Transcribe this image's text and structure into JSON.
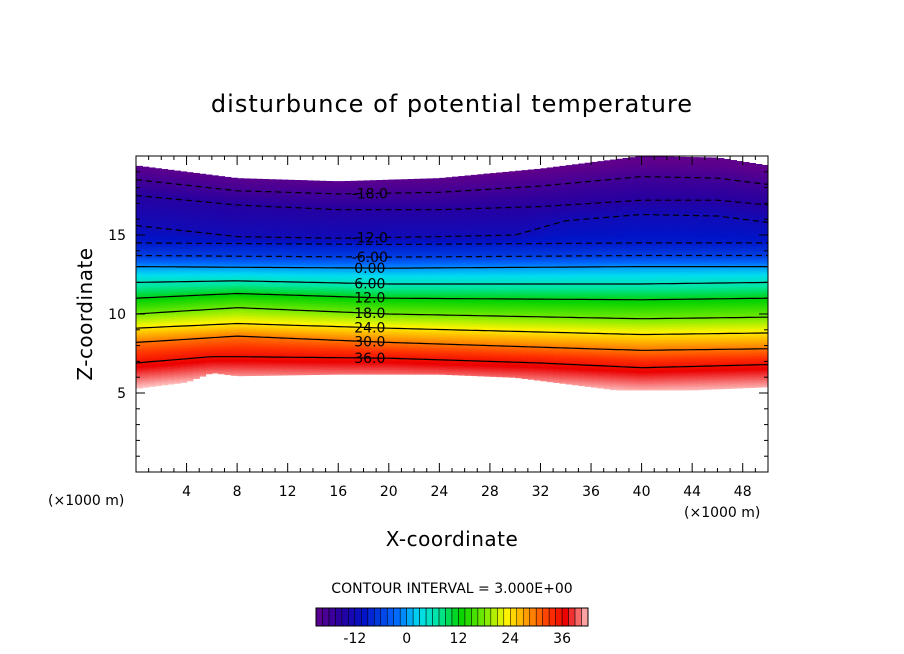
{
  "chart_data": {
    "type": "heatmap",
    "title": "disturbunce of potential temperature",
    "xlabel": "X-coordinate",
    "ylabel": "Z-coordinate",
    "x_unit_label": "(×1000 m)",
    "z_unit_label": "(×1000 m)",
    "xlim": [
      0,
      50
    ],
    "ylim": [
      0,
      20
    ],
    "x_ticks": [
      4,
      8,
      12,
      16,
      20,
      24,
      28,
      32,
      36,
      40,
      44,
      48
    ],
    "y_ticks": [
      5,
      10,
      15
    ],
    "contour_interval_text": "CONTOUR INTERVAL = 3.000E+00",
    "contour_labels": [
      "-18.0",
      "-12.0",
      "-6.00",
      "0.00",
      "6.00",
      "12.0",
      "18.0",
      "24.0",
      "30.0",
      "36.0"
    ],
    "colorbar": {
      "min": -21,
      "max": 42,
      "ticks": [
        -12,
        0,
        12,
        24,
        36
      ]
    },
    "surfaces": {
      "top": [
        [
          0,
          19.4
        ],
        [
          8,
          18.6
        ],
        [
          16,
          18.4
        ],
        [
          24,
          18.6
        ],
        [
          32,
          19.2
        ],
        [
          40,
          20.0
        ],
        [
          46,
          19.9
        ],
        [
          50,
          19.4
        ]
      ],
      "bottom": [
        [
          0,
          5.3
        ],
        [
          4,
          5.7
        ],
        [
          6,
          6.3
        ],
        [
          8,
          6.1
        ],
        [
          16,
          6.2
        ],
        [
          24,
          6.2
        ],
        [
          30,
          6.0
        ],
        [
          34,
          5.6
        ],
        [
          38,
          5.2
        ],
        [
          44,
          5.2
        ],
        [
          50,
          5.4
        ]
      ]
    },
    "contours": [
      {
        "value": -18,
        "profile": [
          [
            0,
            18.5
          ],
          [
            8,
            17.8
          ],
          [
            16,
            17.6
          ],
          [
            24,
            17.7
          ],
          [
            32,
            18.1
          ],
          [
            40,
            18.7
          ],
          [
            46,
            18.6
          ],
          [
            50,
            18.2
          ]
        ]
      },
      {
        "value": -15,
        "profile": [
          [
            0,
            17.5
          ],
          [
            8,
            16.9
          ],
          [
            16,
            16.6
          ],
          [
            24,
            16.6
          ],
          [
            32,
            16.8
          ],
          [
            40,
            17.2
          ],
          [
            46,
            17.2
          ],
          [
            50,
            16.9
          ]
        ]
      },
      {
        "value": -12,
        "profile": [
          [
            0,
            15.6
          ],
          [
            8,
            14.9
          ],
          [
            16,
            14.8
          ],
          [
            24,
            14.9
          ],
          [
            30,
            15.0
          ],
          [
            34,
            15.9
          ],
          [
            40,
            16.3
          ],
          [
            46,
            16.2
          ],
          [
            50,
            15.8
          ]
        ]
      },
      {
        "value": -9,
        "profile": [
          [
            0,
            14.5
          ],
          [
            20,
            14.4
          ],
          [
            40,
            14.5
          ],
          [
            50,
            14.5
          ]
        ]
      },
      {
        "value": -6,
        "profile": [
          [
            0,
            13.7
          ],
          [
            20,
            13.6
          ],
          [
            40,
            13.7
          ],
          [
            50,
            13.7
          ]
        ]
      },
      {
        "value": 0,
        "profile": [
          [
            0,
            13.0
          ],
          [
            20,
            12.9
          ],
          [
            40,
            13.0
          ],
          [
            50,
            13.0
          ]
        ]
      },
      {
        "value": 6,
        "profile": [
          [
            0,
            12.0
          ],
          [
            8,
            12.1
          ],
          [
            20,
            11.9
          ],
          [
            40,
            11.9
          ],
          [
            50,
            12.0
          ]
        ]
      },
      {
        "value": 12,
        "profile": [
          [
            0,
            11.0
          ],
          [
            8,
            11.3
          ],
          [
            20,
            11.0
          ],
          [
            40,
            10.9
          ],
          [
            50,
            11.0
          ]
        ]
      },
      {
        "value": 18,
        "profile": [
          [
            0,
            10.0
          ],
          [
            8,
            10.4
          ],
          [
            20,
            10.0
          ],
          [
            40,
            9.7
          ],
          [
            50,
            9.8
          ]
        ]
      },
      {
        "value": 24,
        "profile": [
          [
            0,
            9.1
          ],
          [
            8,
            9.4
          ],
          [
            20,
            9.1
          ],
          [
            40,
            8.7
          ],
          [
            50,
            8.8
          ]
        ]
      },
      {
        "value": 30,
        "profile": [
          [
            0,
            8.2
          ],
          [
            8,
            8.6
          ],
          [
            20,
            8.2
          ],
          [
            40,
            7.7
          ],
          [
            50,
            7.8
          ]
        ]
      },
      {
        "value": 36,
        "profile": [
          [
            0,
            6.9
          ],
          [
            6,
            7.3
          ],
          [
            8,
            7.3
          ],
          [
            20,
            7.2
          ],
          [
            32,
            6.9
          ],
          [
            40,
            6.6
          ],
          [
            50,
            6.8
          ]
        ]
      }
    ],
    "grid": false,
    "colormap": "rainbow (purple → blue → cyan → green → yellow → orange → red → pink)"
  }
}
